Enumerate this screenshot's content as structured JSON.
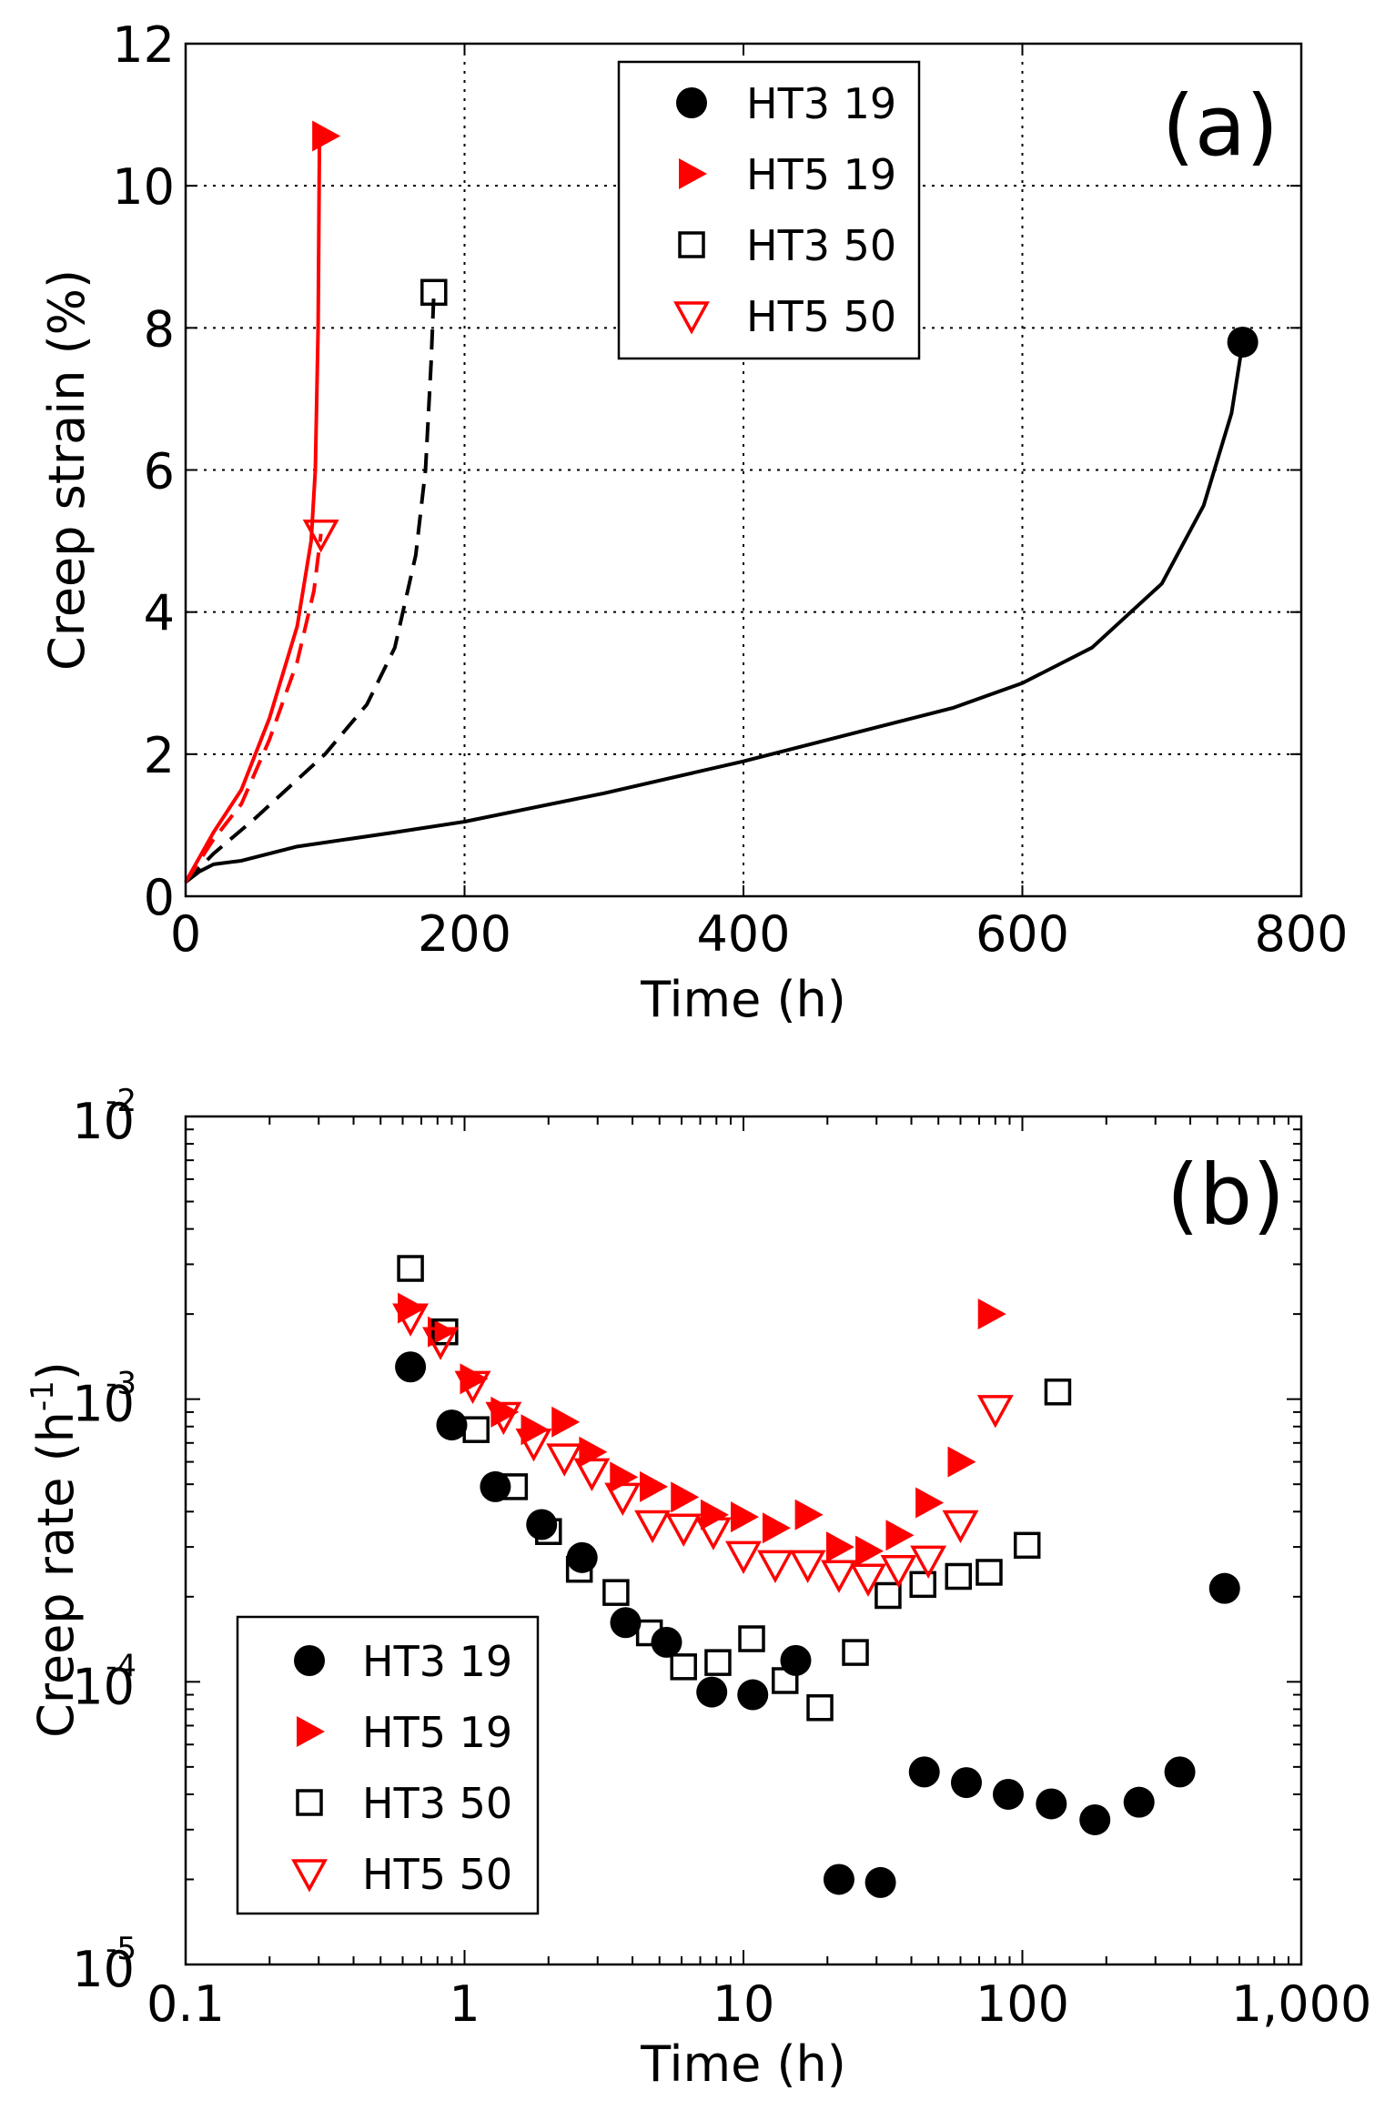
{
  "colors": {
    "black": "#000000",
    "red": "#ff0000"
  },
  "chart_data": [
    {
      "type": "line",
      "panel_label": "(a)",
      "xlabel": "Time (h)",
      "ylabel": "Creep strain (%)",
      "xlim": [
        0,
        800
      ],
      "ylim": [
        0,
        12
      ],
      "grid": true,
      "xticks": [
        "0",
        "200",
        "400",
        "600",
        "800"
      ],
      "yticks": [
        "0",
        "2",
        "4",
        "6",
        "8",
        "10",
        "12"
      ],
      "legend_position": "top-center-right",
      "series": [
        {
          "name": "HT3 19",
          "color": "#000000",
          "dash": false,
          "marker": "filled-circle",
          "x": [
            0,
            10,
            20,
            40,
            80,
            150,
            200,
            300,
            400,
            500,
            550,
            600,
            650,
            700,
            730,
            750,
            758
          ],
          "y": [
            0.2,
            0.35,
            0.45,
            0.5,
            0.7,
            0.9,
            1.05,
            1.45,
            1.9,
            2.4,
            2.65,
            3.0,
            3.5,
            4.4,
            5.5,
            6.8,
            7.8
          ]
        },
        {
          "name": "HT5 19",
          "color": "#ff0000",
          "dash": false,
          "marker": "filled-triangle-right",
          "x": [
            0,
            20,
            40,
            60,
            80,
            90,
            93,
            95,
            96
          ],
          "y": [
            0.2,
            0.9,
            1.5,
            2.5,
            3.8,
            5.0,
            6.0,
            8.0,
            10.7
          ]
        },
        {
          "name": "HT3 50",
          "color": "#000000",
          "dash": true,
          "marker": "open-square",
          "x": [
            0,
            20,
            50,
            100,
            130,
            150,
            165,
            172,
            176,
            178
          ],
          "y": [
            0.2,
            0.6,
            1.1,
            2.0,
            2.7,
            3.5,
            4.8,
            6.0,
            7.5,
            8.5
          ]
        },
        {
          "name": "HT5 50",
          "color": "#ff0000",
          "dash": true,
          "marker": "open-triangle-down",
          "x": [
            0,
            20,
            40,
            60,
            80,
            92,
            97
          ],
          "y": [
            0.2,
            0.8,
            1.3,
            2.2,
            3.3,
            4.3,
            5.1
          ]
        }
      ]
    },
    {
      "type": "scatter",
      "panel_label": "(b)",
      "xlabel": "Time (h)",
      "ylabel": "Creep rate (h",
      "ylabel_sup": "-1",
      "ylabel_end": ")",
      "xscale": "log",
      "yscale": "log",
      "xlim": [
        0.1,
        1000
      ],
      "ylim": [
        1e-05,
        0.01
      ],
      "grid": false,
      "xticks": [
        "0.1",
        "1",
        "10",
        "100",
        "1,000"
      ],
      "yticks": [
        {
          "base": "10",
          "exp": "-5"
        },
        {
          "base": "10",
          "exp": "-4"
        },
        {
          "base": "10",
          "exp": "-3"
        },
        {
          "base": "10",
          "exp": "-2"
        }
      ],
      "legend_position": "bottom-left",
      "series": [
        {
          "name": "HT3 19",
          "color": "#000000",
          "marker": "filled-circle",
          "x": [
            0.64,
            0.9,
            1.29,
            1.89,
            2.64,
            3.78,
            5.3,
            7.7,
            10.8,
            15.4,
            22,
            31,
            44.5,
            63,
            89,
            127,
            182,
            262,
            367,
            531
          ],
          "y": [
            0.0013,
            0.00081,
            0.00049,
            0.00036,
            0.000275,
            0.000162,
            0.000138,
            9.2e-05,
            9e-05,
            0.000119,
            2e-05,
            1.95e-05,
            4.8e-05,
            4.4e-05,
            4e-05,
            3.7e-05,
            3.25e-05,
            3.75e-05,
            4.8e-05,
            0.000214
          ]
        },
        {
          "name": "HT5 19",
          "color": "#ff0000",
          "marker": "filled-triangle-right",
          "x": [
            0.64,
            0.82,
            1.07,
            1.38,
            1.77,
            2.28,
            2.86,
            3.69,
            4.72,
            6.1,
            7.8,
            10,
            13,
            17,
            22,
            28,
            36,
            46,
            60,
            77
          ],
          "y": [
            0.0021,
            0.00173,
            0.00118,
            0.0009,
            0.00078,
            0.00083,
            0.00065,
            0.00053,
            0.00049,
            0.00045,
            0.00039,
            0.000383,
            0.00035,
            0.00039,
            0.0003,
            0.00029,
            0.00033,
            0.00043,
            0.0006,
            0.002
          ]
        },
        {
          "name": "HT3 50",
          "color": "#000000",
          "marker": "open-square",
          "x": [
            0.64,
            0.85,
            1.1,
            1.51,
            2.0,
            2.58,
            3.49,
            4.6,
            6.1,
            8.1,
            10.7,
            14.1,
            18.8,
            25.2,
            33,
            44,
            59,
            76,
            104,
            134
          ],
          "y": [
            0.0029,
            0.00173,
            0.00078,
            0.00049,
            0.00034,
            0.00025,
            0.000207,
            0.000149,
            0.000113,
            0.000117,
            0.000142,
            0.000101,
            8.1e-05,
            0.000127,
            0.000202,
            0.000221,
            0.000236,
            0.000244,
            0.000304,
            0.00106
          ]
        },
        {
          "name": "HT5 50",
          "color": "#ff0000",
          "marker": "open-triangle-down",
          "x": [
            0.64,
            0.82,
            1.07,
            1.38,
            1.77,
            2.28,
            2.86,
            3.69,
            4.72,
            6.1,
            7.8,
            10,
            13,
            17,
            22,
            28,
            36,
            46,
            60,
            80
          ],
          "y": [
            0.00194,
            0.0016,
            0.00112,
            0.00087,
            0.0007,
            0.00062,
            0.00055,
            0.00045,
            0.00036,
            0.00035,
            0.00034,
            0.00028,
            0.00026,
            0.00026,
            0.00024,
            0.000233,
            0.00025,
            0.00027,
            0.00036,
            0.00092
          ]
        }
      ]
    }
  ]
}
